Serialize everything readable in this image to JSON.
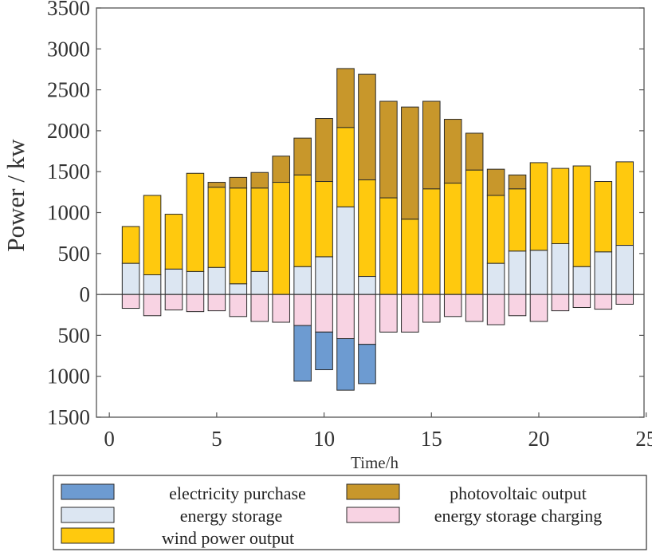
{
  "chart_data": {
    "type": "bar",
    "stacked": true,
    "title": "",
    "xlabel": "Time/h",
    "ylabel": "Power / kw",
    "xlim": [
      -0.6,
      24.9
    ],
    "ylim": [
      -1500,
      3500
    ],
    "x_ticks": [
      0,
      5,
      10,
      15,
      20,
      25
    ],
    "x_tick_labels": [
      "0",
      "5",
      "10",
      "15",
      "20",
      "25"
    ],
    "y_ticks": [
      3500,
      3000,
      2500,
      2000,
      1500,
      1000,
      500,
      0,
      -500,
      -1000,
      -1500
    ],
    "y_tick_labels": [
      "3500",
      "3000",
      "2500",
      "2000",
      "1500",
      "1000",
      "500",
      "0",
      "500",
      "1000",
      "1500"
    ],
    "grid": false,
    "legend_position": "bottom",
    "categories": [
      1,
      2,
      3,
      4,
      5,
      6,
      7,
      8,
      9,
      10,
      11,
      12,
      13,
      14,
      15,
      16,
      17,
      18,
      19,
      20,
      21,
      22,
      23,
      24
    ],
    "series": [
      {
        "name": "energy storage",
        "color": "#dce6f2",
        "values": [
          380,
          240,
          310,
          280,
          330,
          130,
          280,
          0,
          340,
          460,
          1070,
          220,
          0,
          0,
          0,
          0,
          0,
          380,
          530,
          540,
          620,
          340,
          520,
          600
        ]
      },
      {
        "name": "wind power output",
        "color": "#ffc90e",
        "values": [
          450,
          970,
          670,
          1200,
          980,
          1170,
          1020,
          1370,
          1120,
          920,
          970,
          1180,
          1180,
          920,
          1290,
          1360,
          1520,
          830,
          760,
          1070,
          920,
          1230,
          860,
          1020
        ]
      },
      {
        "name": "photovoltaic output",
        "color": "#c8972b",
        "values": [
          0,
          0,
          0,
          0,
          60,
          130,
          190,
          320,
          450,
          770,
          720,
          1290,
          1180,
          1370,
          1070,
          780,
          450,
          320,
          170,
          0,
          0,
          0,
          0,
          0
        ]
      },
      {
        "name": "energy storage charging",
        "color": "#f8d3e3",
        "values": [
          -170,
          -260,
          -190,
          -210,
          -200,
          -270,
          -330,
          -340,
          -380,
          -460,
          -540,
          -610,
          -460,
          -460,
          -340,
          -270,
          -330,
          -370,
          -260,
          -330,
          -200,
          -160,
          -180,
          -120
        ]
      },
      {
        "name": "electricity purchase",
        "color": "#6d9bd1",
        "values": [
          0,
          0,
          0,
          0,
          0,
          0,
          0,
          0,
          -680,
          -460,
          -630,
          -480,
          0,
          0,
          0,
          0,
          0,
          0,
          0,
          0,
          0,
          0,
          0,
          0
        ]
      }
    ],
    "legend": [
      {
        "label": "electricity purchase",
        "color": "#6d9bd1"
      },
      {
        "label": "photovoltaic output",
        "color": "#c8972b"
      },
      {
        "label": "energy storage",
        "color": "#dce6f2"
      },
      {
        "label": "energy storage charging",
        "color": "#f8d3e3"
      },
      {
        "label": "wind power output",
        "color": "#ffc90e"
      }
    ]
  }
}
